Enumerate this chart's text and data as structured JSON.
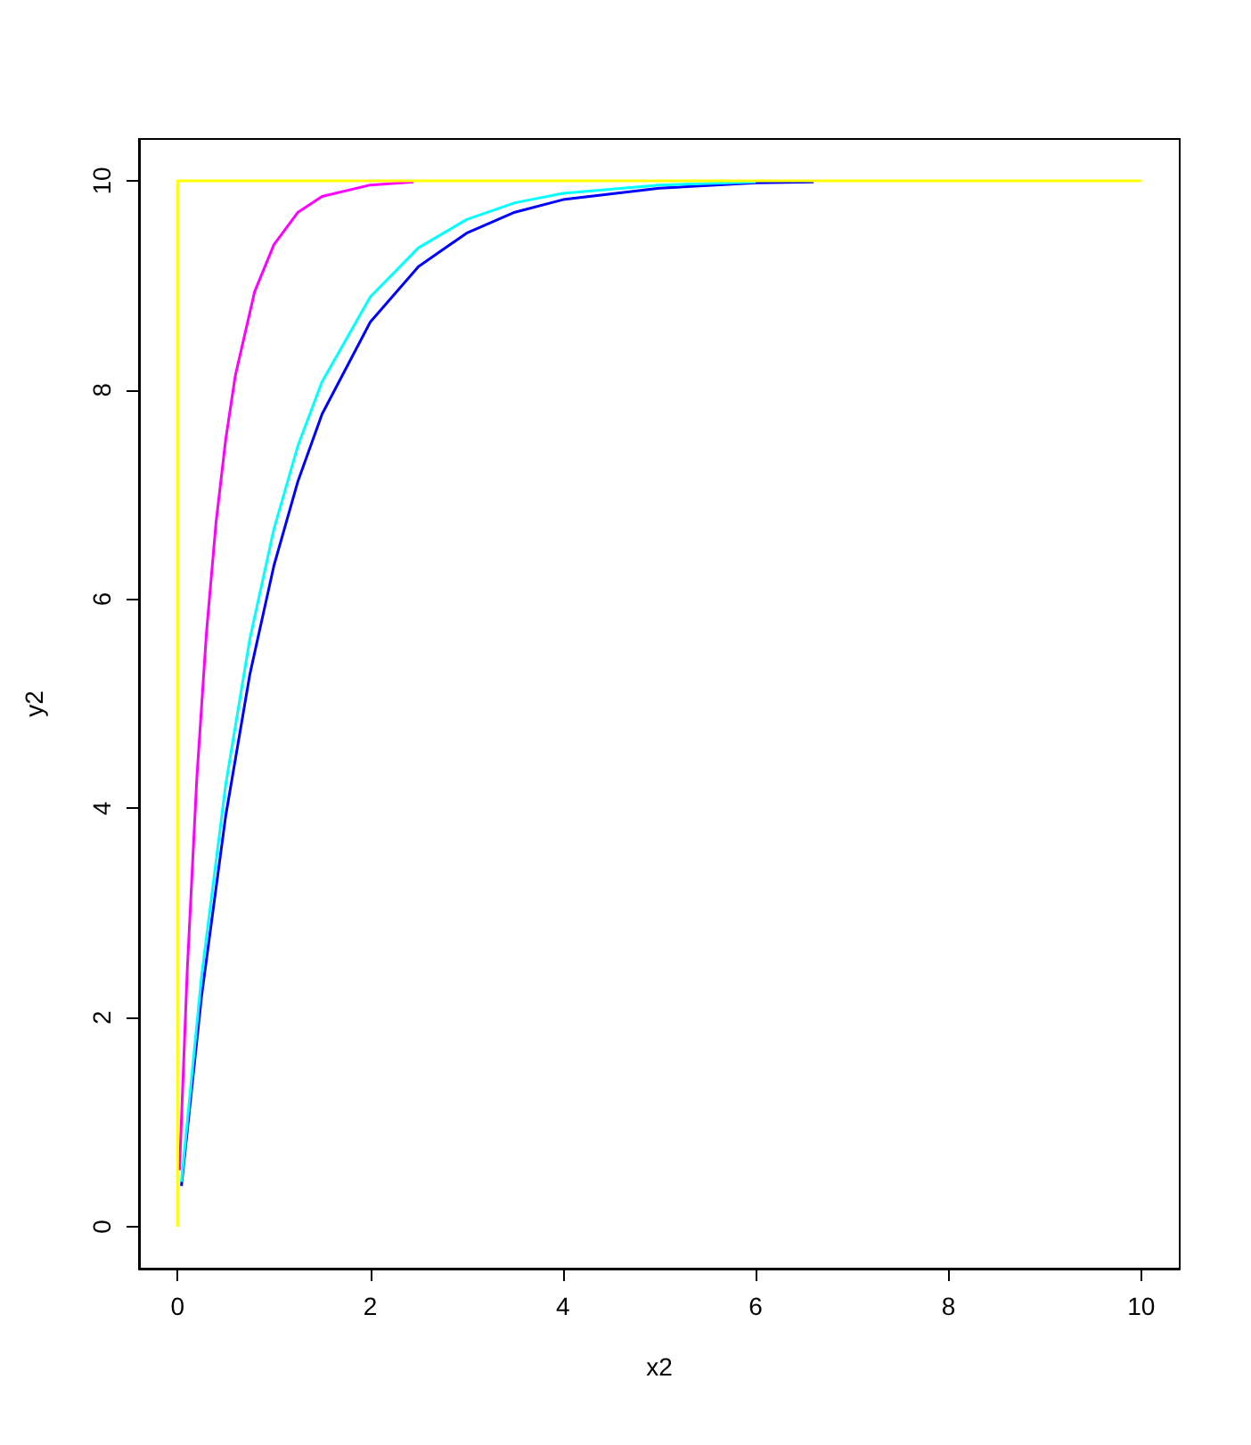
{
  "chart_data": {
    "type": "line",
    "xlabel": "x2",
    "ylabel": "y2",
    "xlim": [
      -0.4,
      10.4
    ],
    "ylim": [
      -0.4,
      10.4
    ],
    "xticks": [
      0,
      2,
      4,
      6,
      8,
      10
    ],
    "yticks": [
      0,
      2,
      4,
      6,
      8,
      10
    ],
    "grid": false,
    "series": [
      {
        "color": "#0000ff",
        "x": [
          0.04,
          0.25,
          0.5,
          0.75,
          1,
          1.25,
          1.5,
          2,
          2.5,
          3,
          3.5,
          4,
          5,
          6,
          6.6
        ],
        "values": [
          0.39,
          2.21,
          3.93,
          5.28,
          6.32,
          7.13,
          7.77,
          8.65,
          9.18,
          9.5,
          9.7,
          9.82,
          9.93,
          9.98,
          9.99
        ]
      },
      {
        "color": "#00ffff",
        "x": [
          0.04,
          0.25,
          0.5,
          0.75,
          1,
          1.25,
          1.5,
          2,
          2.5,
          3,
          3.5,
          4,
          5,
          6
        ],
        "values": [
          0.43,
          2.4,
          4.23,
          5.62,
          6.67,
          7.47,
          8.08,
          8.89,
          9.36,
          9.63,
          9.79,
          9.88,
          9.96,
          9.99
        ]
      },
      {
        "color": "#ff00ff",
        "x": [
          0.02,
          0.1,
          0.2,
          0.3,
          0.4,
          0.5,
          0.6,
          0.8,
          1,
          1.25,
          1.5,
          2,
          2.45
        ],
        "values": [
          0.54,
          2.44,
          4.29,
          5.68,
          6.74,
          7.53,
          8.14,
          8.94,
          9.39,
          9.7,
          9.85,
          9.96,
          9.99
        ]
      },
      {
        "color": "#ffff00",
        "x": [
          0,
          0,
          10
        ],
        "values": [
          0,
          10,
          10
        ]
      }
    ]
  }
}
